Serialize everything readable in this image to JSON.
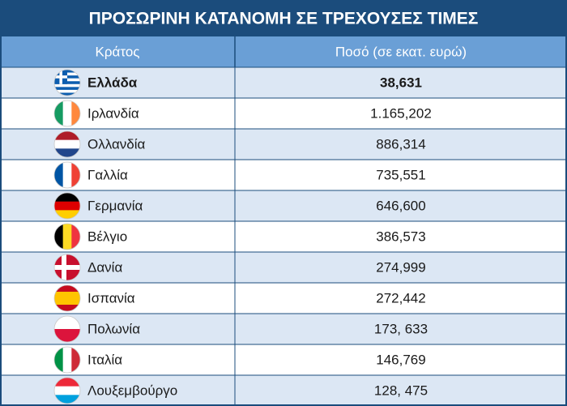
{
  "title": "ΠΡΟΣΩΡΙΝΗ ΚΑΤΑΝΟΜΗ ΣΕ ΤΡΕΧΟΥΣΕΣ ΤΙΜΕΣ",
  "table": {
    "columns": [
      "Κράτος",
      "Ποσό (σε εκατ. ευρώ)"
    ],
    "rows": [
      [
        "Ελλάδα",
        "38,631"
      ],
      [
        "Ιρλανδία",
        "1.165,202"
      ],
      [
        "Ολλανδία",
        "886,314"
      ],
      [
        "Γαλλία",
        "735,551"
      ],
      [
        "Γερμανία",
        "646,600"
      ],
      [
        "Βέλγιο",
        "386,573"
      ],
      [
        "Δανία",
        "274,999"
      ],
      [
        "Ισπανία",
        "272,442"
      ],
      [
        "Πολωνία",
        "173, 633"
      ],
      [
        "Ιταλία",
        "146,769"
      ],
      [
        "Λουξεμβούργο",
        "128, 475"
      ]
    ]
  }
}
